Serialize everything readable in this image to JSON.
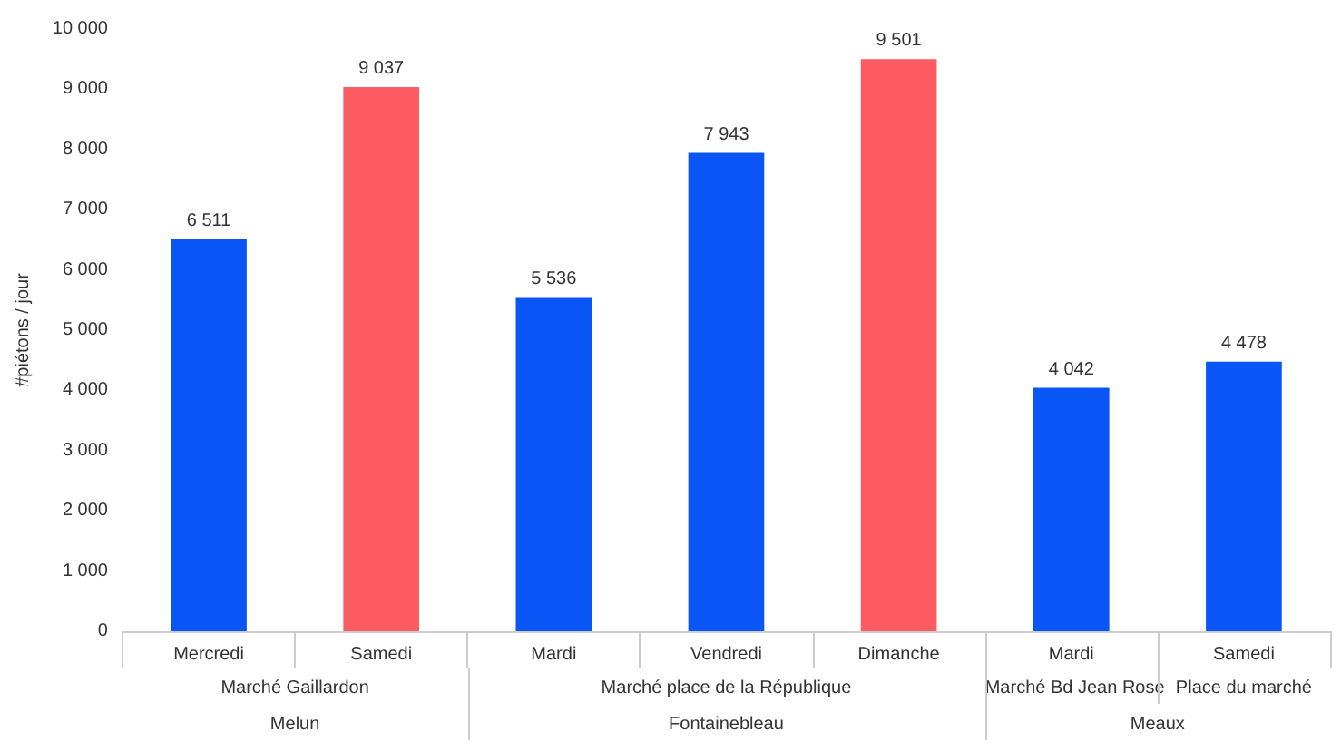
{
  "chart_data": {
    "type": "bar",
    "ylabel": "#piétons / jour",
    "categories": [
      "Mercredi",
      "Samedi",
      "Mardi",
      "Vendredi",
      "Dimanche",
      "Mardi",
      "Samedi"
    ],
    "values": [
      6511,
      9037,
      5536,
      7943,
      9501,
      4042,
      4478
    ],
    "colors": [
      "#0a55f5",
      "#fd5c63",
      "#0a55f5",
      "#0a55f5",
      "#fd5c63",
      "#0a55f5",
      "#0a55f5"
    ],
    "ylim": [
      0,
      10000
    ],
    "yticks": [
      0,
      {
        "value": 1000,
        "label": "1 000"
      },
      {
        "value": 2000,
        "label": "2 000"
      },
      {
        "value": 3000,
        "label": "3 000"
      },
      {
        "value": 4000,
        "label": "4 000"
      },
      {
        "value": 5000,
        "label": "5 000"
      },
      {
        "value": 6000,
        "label": "6 000"
      },
      {
        "value": 7000,
        "label": "7 000"
      },
      {
        "value": 8000,
        "label": "8 000"
      },
      {
        "value": 9000,
        "label": "9 000"
      },
      {
        "value": 10000,
        "label": "10 000"
      }
    ],
    "data_labels": true,
    "grid": false,
    "annotations": [
      "Marché Gaillardon",
      "Marché place de la République",
      "Marché Bd Jean Rose",
      "Place du marché",
      "Melun",
      "Fontainebleau",
      "Meaux"
    ]
  }
}
